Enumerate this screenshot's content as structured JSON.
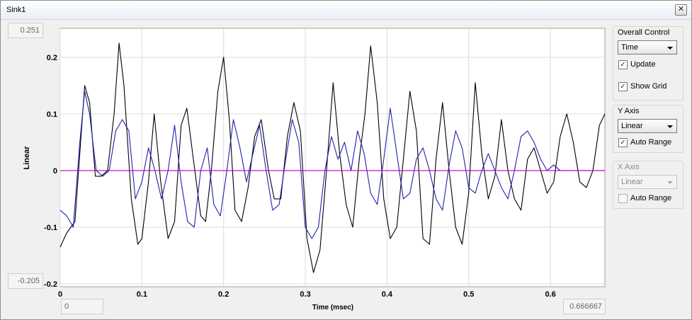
{
  "window": {
    "title": "Sink1",
    "close_glyph": "✕"
  },
  "plot": {
    "ymax_display": "0.251",
    "ymin_display": "-0.205",
    "xmin_display": "0",
    "xmax_display": "0.666667",
    "ylabel": "Linear",
    "xlabel": "Time (msec)"
  },
  "controls": {
    "overall": {
      "title": "Overall Control",
      "select_value": "Time",
      "update_label": "Update",
      "update_checked": true,
      "grid_label": "Show Grid",
      "grid_checked": true
    },
    "yaxis": {
      "title": "Y Axis",
      "select_value": "Linear",
      "auto_label": "Auto Range",
      "auto_checked": true
    },
    "xaxis": {
      "title": "X Axis",
      "select_value": "Linear",
      "auto_label": "Auto Range",
      "auto_checked": false
    }
  },
  "chart_data": {
    "type": "line",
    "xlabel": "Time (msec)",
    "ylabel": "Linear",
    "xlim": [
      0,
      0.666667
    ],
    "ylim": [
      -0.205,
      0.251
    ],
    "grid": true,
    "xticks": [
      0,
      0.1,
      0.2,
      0.3,
      0.4,
      0.5,
      0.6
    ],
    "yticks": [
      -0.2,
      -0.1,
      0,
      0.1,
      0.2
    ],
    "series": [
      {
        "color": "#000000",
        "x": [
          0,
          0.008,
          0.018,
          0.025,
          0.03,
          0.036,
          0.043,
          0.05,
          0.058,
          0.066,
          0.072,
          0.078,
          0.087,
          0.095,
          0.1,
          0.108,
          0.115,
          0.123,
          0.132,
          0.14,
          0.148,
          0.155,
          0.163,
          0.172,
          0.178,
          0.185,
          0.193,
          0.2,
          0.207,
          0.214,
          0.222,
          0.23,
          0.238,
          0.246,
          0.255,
          0.262,
          0.27,
          0.278,
          0.286,
          0.294,
          0.302,
          0.31,
          0.318,
          0.326,
          0.334,
          0.342,
          0.35,
          0.358,
          0.366,
          0.373,
          0.38,
          0.388,
          0.396,
          0.404,
          0.412,
          0.42,
          0.428,
          0.436,
          0.444,
          0.452,
          0.46,
          0.468,
          0.476,
          0.484,
          0.492,
          0.5,
          0.508,
          0.516,
          0.524,
          0.532,
          0.54,
          0.548,
          0.556,
          0.564,
          0.572,
          0.58,
          0.588,
          0.596,
          0.604,
          0.612,
          0.62,
          0.628,
          0.636,
          0.644,
          0.652,
          0.66,
          0.666667
        ],
        "y": [
          -0.135,
          -0.11,
          -0.09,
          0.05,
          0.15,
          0.12,
          -0.01,
          -0.01,
          0.0,
          0.1,
          0.225,
          0.15,
          -0.05,
          -0.13,
          -0.12,
          -0.02,
          0.1,
          -0.02,
          -0.12,
          -0.09,
          0.08,
          0.11,
          0.02,
          -0.08,
          -0.09,
          0.0,
          0.14,
          0.2,
          0.09,
          -0.07,
          -0.09,
          -0.03,
          0.06,
          0.09,
          0.0,
          -0.05,
          -0.05,
          0.06,
          0.12,
          0.07,
          -0.12,
          -0.18,
          -0.14,
          0.0,
          0.155,
          0.03,
          -0.06,
          -0.1,
          0.02,
          0.1,
          0.22,
          0.12,
          -0.05,
          -0.12,
          -0.1,
          0.02,
          0.14,
          0.07,
          -0.12,
          -0.13,
          0.02,
          0.12,
          0.0,
          -0.1,
          -0.13,
          -0.04,
          0.155,
          0.03,
          -0.05,
          -0.01,
          0.09,
          0.0,
          -0.05,
          -0.07,
          0.02,
          0.04,
          0.0,
          -0.04,
          -0.02,
          0.06,
          0.1,
          0.05,
          -0.02,
          -0.03,
          0.0,
          0.08,
          0.1
        ]
      },
      {
        "color": "#2020b0",
        "x": [
          0,
          0.008,
          0.016,
          0.024,
          0.03,
          0.036,
          0.044,
          0.052,
          0.06,
          0.068,
          0.076,
          0.084,
          0.092,
          0.1,
          0.108,
          0.116,
          0.124,
          0.132,
          0.14,
          0.148,
          0.156,
          0.164,
          0.172,
          0.18,
          0.188,
          0.196,
          0.204,
          0.212,
          0.22,
          0.228,
          0.236,
          0.244,
          0.252,
          0.26,
          0.268,
          0.276,
          0.284,
          0.292,
          0.3,
          0.308,
          0.316,
          0.324,
          0.332,
          0.34,
          0.348,
          0.356,
          0.364,
          0.372,
          0.38,
          0.388,
          0.396,
          0.404,
          0.412,
          0.42,
          0.428,
          0.436,
          0.444,
          0.452,
          0.46,
          0.468,
          0.476,
          0.484,
          0.492,
          0.5,
          0.508,
          0.516,
          0.524,
          0.532,
          0.54,
          0.548,
          0.556,
          0.564,
          0.572,
          0.58,
          0.588,
          0.596,
          0.604,
          0.612,
          0.62,
          0.628,
          0.636,
          0.644,
          0.652,
          0.66,
          0.666667
        ],
        "y": [
          -0.07,
          -0.08,
          -0.1,
          0.05,
          0.14,
          0.1,
          0.0,
          -0.01,
          0.0,
          0.07,
          0.09,
          0.07,
          -0.05,
          -0.02,
          0.04,
          0.0,
          -0.05,
          0.0,
          0.08,
          -0.02,
          -0.09,
          -0.1,
          0.0,
          0.04,
          -0.06,
          -0.08,
          0.0,
          0.09,
          0.04,
          -0.02,
          0.03,
          0.08,
          0.0,
          -0.07,
          -0.06,
          0.02,
          0.09,
          0.05,
          -0.1,
          -0.12,
          -0.1,
          0.0,
          0.06,
          0.02,
          0.05,
          0.0,
          0.07,
          0.03,
          -0.04,
          -0.06,
          0.02,
          0.11,
          0.03,
          -0.05,
          -0.04,
          0.02,
          0.04,
          0.0,
          -0.05,
          -0.07,
          0.01,
          0.07,
          0.04,
          -0.03,
          -0.04,
          0.0,
          0.03,
          0.0,
          -0.03,
          -0.05,
          0.0,
          0.06,
          0.07,
          0.05,
          0.02,
          0.0,
          0.01,
          0.0,
          0.0,
          0.0,
          0.0,
          0.0,
          0.0,
          0.0,
          0.0
        ]
      },
      {
        "color": "#c000c0",
        "x": [
          0,
          0.666667
        ],
        "y": [
          0,
          0
        ]
      }
    ]
  }
}
